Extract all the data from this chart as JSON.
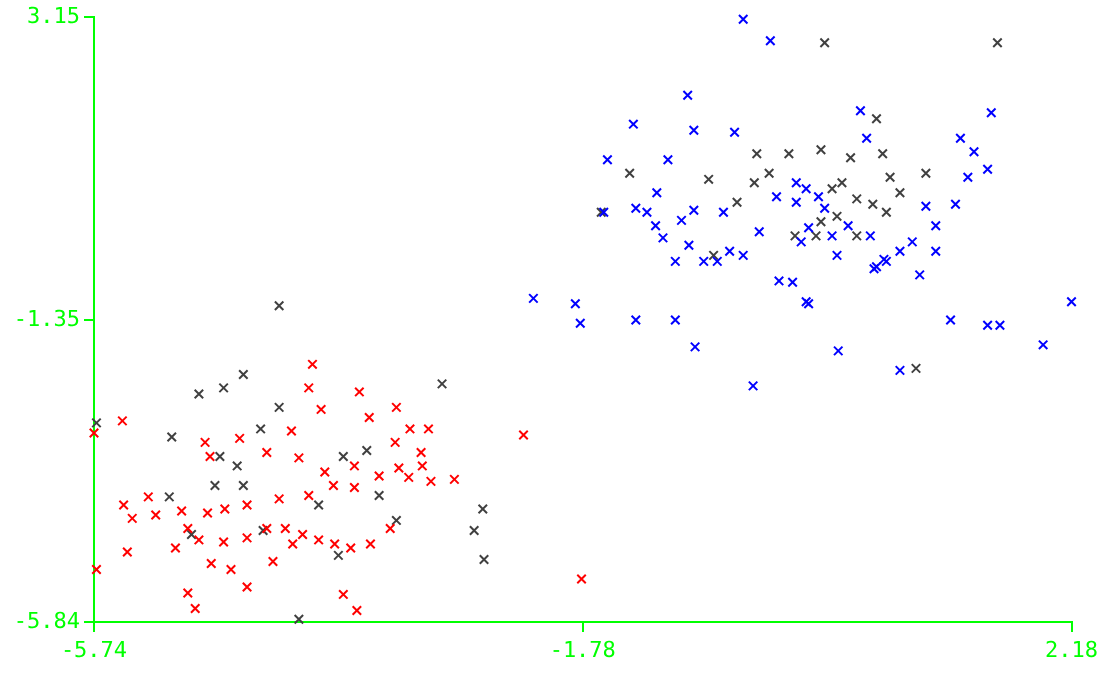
{
  "chart_data": {
    "type": "scatter",
    "marker": "cross",
    "grid": false,
    "legend": false,
    "xlim": [
      -5.74,
      2.18
    ],
    "xticks": [
      -5.74,
      -1.78,
      2.18
    ],
    "ylim": [
      -5.84,
      3.15
    ],
    "yticks": [
      -5.84,
      -1.35,
      3.15
    ],
    "series": [
      {
        "color": "#ff0000",
        "x": [
          -5.74,
          -5.51,
          -3.97,
          -4.0,
          -3.59,
          -3.9,
          -3.51,
          -3.29,
          -3.18,
          -3.03,
          -3.08,
          -2.26,
          -3.3,
          -4.14,
          -4.56,
          -4.34,
          -4.8,
          -4.84,
          -4.08,
          -3.87,
          -3.63,
          -3.43,
          -3.19,
          -3.01,
          -3.09,
          -3.8,
          -3.63,
          -4.0,
          -4.24,
          -4.5,
          -4.68,
          -4.82,
          -5.03,
          -5.3,
          -5.24,
          -5.5,
          -5.43,
          -4.98,
          -4.89,
          -4.69,
          -4.5,
          -4.34,
          -4.19,
          -4.05,
          -4.13,
          -3.92,
          -3.5,
          -3.34,
          -3.66,
          -3.79,
          -5.08,
          -4.79,
          -4.63,
          -4.5,
          -4.29,
          -5.72,
          -4.98,
          -4.92,
          -3.61,
          -1.79,
          -5.47,
          -3.72,
          -2.82,
          -3.27
        ],
        "values": [
          -3.03,
          -2.85,
          -2.01,
          -2.36,
          -2.42,
          -2.68,
          -2.8,
          -2.65,
          -2.97,
          -2.97,
          -3.52,
          -3.06,
          -3.17,
          -3.0,
          -3.11,
          -3.32,
          -3.38,
          -3.17,
          -3.4,
          -3.61,
          -3.52,
          -3.67,
          -3.69,
          -3.75,
          -3.32,
          -3.81,
          -3.84,
          -3.96,
          -4.01,
          -4.1,
          -4.16,
          -4.22,
          -4.19,
          -3.98,
          -4.25,
          -4.1,
          -4.3,
          -4.45,
          -4.62,
          -4.65,
          -4.59,
          -4.45,
          -4.45,
          -4.54,
          -4.68,
          -4.62,
          -4.68,
          -4.45,
          -4.74,
          -4.68,
          -4.74,
          -4.97,
          -5.06,
          -5.32,
          -4.94,
          -5.06,
          -5.41,
          -5.64,
          -5.67,
          -5.2,
          -4.8,
          -5.43,
          -3.72,
          -3.55
        ]
      },
      {
        "color": "#0000ff",
        "x": [
          -0.48,
          -0.26,
          -0.93,
          -1.37,
          -0.88,
          -0.55,
          -1.09,
          -1.58,
          -1.61,
          -1.35,
          -1.18,
          -0.64,
          -0.05,
          0.13,
          0.47,
          0.52,
          1.0,
          1.39,
          1.53,
          1.28,
          1.5,
          1.34,
          1.24,
          1.08,
          0.89,
          0.55,
          0.28,
          0.68,
          1.08,
          0.79,
          0.6,
          0.37,
          0.18,
          0.05,
          -0.01,
          0.24,
          0.03,
          -0.21,
          -0.05,
          -0.35,
          -0.88,
          -0.98,
          -1.19,
          -1.26,
          -1.13,
          -0.92,
          -1.03,
          -0.8,
          -0.69,
          -0.59,
          -0.48,
          -0.19,
          -0.08,
          0.05,
          0.58,
          0.66,
          0.95,
          1.2,
          1.5,
          1.6,
          1.95,
          2.18,
          0.29,
          0.79,
          -0.87,
          -0.4,
          -2.18,
          -1.84,
          -1.8,
          -1.35,
          -1.03,
          0.03
        ],
        "values": [
          3.12,
          2.8,
          1.99,
          1.56,
          1.47,
          1.44,
          1.03,
          1.03,
          0.25,
          0.31,
          0.54,
          0.25,
          0.69,
          0.48,
          1.76,
          1.35,
          0.34,
          1.15,
          1.73,
          1.35,
          0.89,
          0.77,
          0.37,
          0.05,
          -0.19,
          -0.1,
          -0.39,
          -0.48,
          -0.33,
          -0.33,
          -0.56,
          0.05,
          0.31,
          0.02,
          -0.19,
          -0.1,
          0.6,
          0.48,
          0.4,
          -0.04,
          0.28,
          0.13,
          0.05,
          0.25,
          -0.13,
          -0.24,
          -0.48,
          -0.48,
          -0.48,
          -0.33,
          -0.39,
          -0.77,
          -0.79,
          -1.11,
          -0.59,
          -0.45,
          -0.68,
          -1.35,
          -1.43,
          -1.43,
          -1.72,
          -1.08,
          -1.81,
          -2.1,
          -1.75,
          -2.33,
          -1.03,
          -1.11,
          -1.4,
          -1.35,
          -1.35,
          -1.08
        ]
      },
      {
        "color": "#404040",
        "x": [
          -4.24,
          -4.53,
          -4.69,
          -4.89,
          -5.72,
          -5.11,
          -2.92,
          -4.39,
          -4.24,
          -4.58,
          -4.76,
          -4.53,
          -5.13,
          -4.95,
          -2.59,
          -3.29,
          -2.66,
          -2.58,
          -3.53,
          -3.72,
          -4.08,
          -3.76,
          -3.92,
          -4.37,
          -3.43,
          -4.72,
          0.18,
          1.58,
          0.6,
          -0.11,
          0.15,
          0.39,
          0.24,
          0.65,
          0.71,
          0.79,
          0.32,
          0.44,
          1.0,
          0.57,
          0.15,
          0.28,
          -1.63,
          -1.4,
          -0.76,
          -0.53,
          -0.39,
          -0.27,
          -0.72,
          -0.06,
          0.44,
          0.11,
          -0.37,
          0.92,
          0.68
        ],
        "values": [
          -1.14,
          -2.16,
          -2.36,
          -2.45,
          -2.88,
          -3.09,
          -2.3,
          -2.97,
          -2.65,
          -3.52,
          -3.81,
          -3.81,
          -3.98,
          -4.54,
          -4.16,
          -4.33,
          -4.48,
          -4.91,
          -3.29,
          -3.38,
          -5.8,
          -4.85,
          -4.1,
          -4.48,
          -3.96,
          -3.38,
          2.77,
          2.77,
          1.64,
          1.12,
          1.18,
          1.06,
          0.6,
          1.12,
          0.77,
          0.54,
          0.69,
          0.45,
          0.83,
          0.37,
          0.11,
          0.19,
          0.25,
          0.83,
          0.74,
          0.4,
          0.69,
          0.83,
          -0.39,
          -0.1,
          -0.1,
          -0.1,
          1.12,
          -2.07,
          0.25
        ]
      }
    ]
  }
}
